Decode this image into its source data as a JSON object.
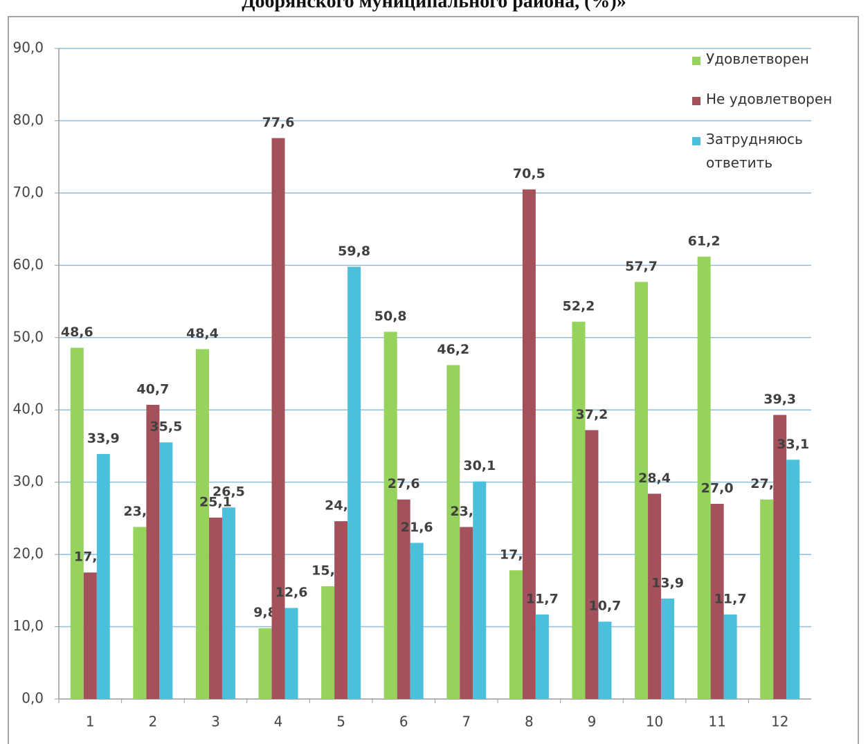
{
  "chart_data": {
    "type": "bar",
    "title": "Добрянского муниципального района, (%)»",
    "categories": [
      "1",
      "2",
      "3",
      "4",
      "5",
      "6",
      "7",
      "8",
      "9",
      "10",
      "11",
      "12"
    ],
    "series": [
      {
        "name": "Удовлетворен",
        "color": "#96d35c",
        "values": [
          48.6,
          23.8,
          48.4,
          9.8,
          15.6,
          50.8,
          46.2,
          17.8,
          52.2,
          57.7,
          61.2,
          27.6
        ],
        "value_labels": [
          "48,6",
          "23,8",
          "48,4",
          "9,8",
          "15,6",
          "50,8",
          "46,2",
          "17,8",
          "52,2",
          "57,7",
          "61,2",
          "27,6"
        ]
      },
      {
        "name": "Не удовлетворен",
        "color": "#a3525b",
        "values": [
          17.5,
          40.7,
          25.1,
          77.6,
          24.6,
          27.6,
          23.8,
          70.5,
          37.2,
          28.4,
          27.0,
          39.3
        ],
        "value_labels": [
          "17,5",
          "40,7",
          "25,1",
          "77,6",
          "24,6",
          "27,6",
          "23,8",
          "70,5",
          "37,2",
          "28,4",
          "27,0",
          "39,3"
        ]
      },
      {
        "name": "Затрудняюсь ответить",
        "color": "#4cbfdb",
        "values": [
          33.9,
          35.5,
          26.5,
          12.6,
          59.8,
          21.6,
          30.1,
          11.7,
          10.7,
          13.9,
          11.7,
          33.1
        ],
        "value_labels": [
          "33,9",
          "35,5",
          "26,5",
          "12,6",
          "59,8",
          "21,6",
          "30,1",
          "11,7",
          "10,7",
          "13,9",
          "11,7",
          "33,1"
        ]
      }
    ],
    "ylim": [
      0,
      90
    ],
    "yticks": [
      {
        "value": 0,
        "label": "0,0"
      },
      {
        "value": 10,
        "label": "10,0"
      },
      {
        "value": 20,
        "label": "20,0"
      },
      {
        "value": 30,
        "label": "30,0"
      },
      {
        "value": 40,
        "label": "40,0"
      },
      {
        "value": 50,
        "label": "50,0"
      },
      {
        "value": 60,
        "label": "60,0"
      },
      {
        "value": 70,
        "label": "70,0"
      },
      {
        "value": 80,
        "label": "80,0"
      },
      {
        "value": 90,
        "label": "90,0"
      }
    ],
    "grid": true,
    "legend": "right"
  }
}
